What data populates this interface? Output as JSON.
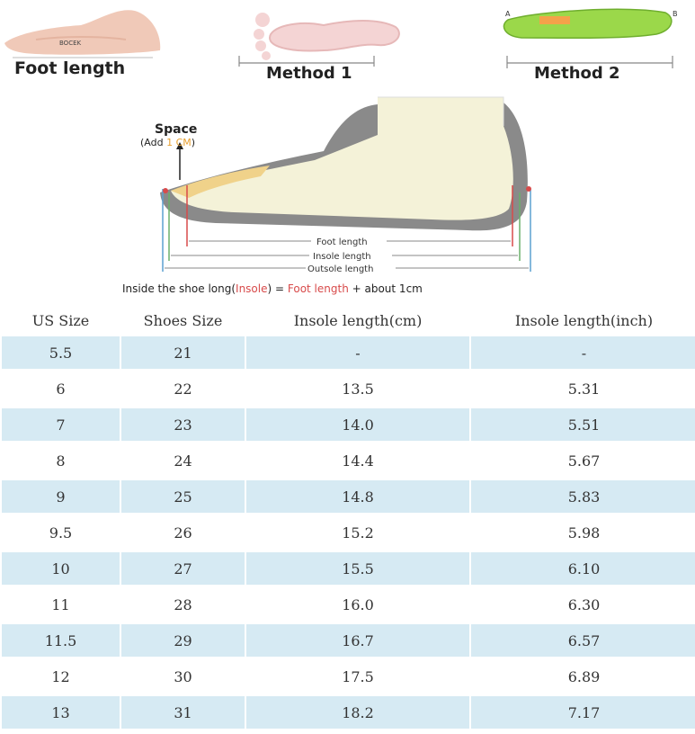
{
  "figures": {
    "foot_length_label": "Foot length",
    "method1_label": "Method 1",
    "method2_label": "Method 2",
    "insole_stamp": "BOCEK",
    "point_a": "A",
    "point_b": "B"
  },
  "diagram": {
    "space_label": "Space",
    "add_prefix": "(Add ",
    "add_value": "1 CM",
    "add_suffix": ")",
    "foot_length": "Foot length",
    "insole_length": "Insole length",
    "outsole_length": "Outsole length",
    "formula_part1": "Inside the shoe long(",
    "formula_insole": "Insole",
    "formula_part2": ") = ",
    "formula_foot": "Foot length",
    "formula_part3": " + about 1cm"
  },
  "table": {
    "headers": [
      "US Size",
      "Shoes Size",
      "Insole length(cm)",
      "Insole length(inch)"
    ],
    "rows": [
      [
        "5.5",
        "21",
        "-",
        "-"
      ],
      [
        "6",
        "22",
        "13.5",
        "5.31"
      ],
      [
        "7",
        "23",
        "14.0",
        "5.51"
      ],
      [
        "8",
        "24",
        "14.4",
        "5.67"
      ],
      [
        "9",
        "25",
        "14.8",
        "5.83"
      ],
      [
        "9.5",
        "26",
        "15.2",
        "5.98"
      ],
      [
        "10",
        "27",
        "15.5",
        "6.10"
      ],
      [
        "11",
        "28",
        "16.0",
        "6.30"
      ],
      [
        "11.5",
        "29",
        "16.7",
        "6.57"
      ],
      [
        "12",
        "30",
        "17.5",
        "6.89"
      ],
      [
        "13",
        "31",
        "18.2",
        "7.17"
      ]
    ]
  }
}
